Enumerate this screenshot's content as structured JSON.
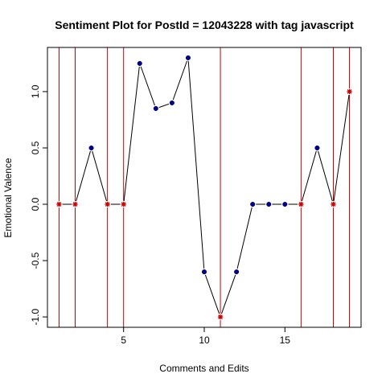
{
  "chart_data": {
    "type": "line",
    "title": "Sentiment Plot for PostId =  12043228  with tag  javascript",
    "xlabel": "Comments and Edits",
    "ylabel": "Emotional Valence",
    "xlim": [
      0.28,
      19.72
    ],
    "ylim": [
      -1.092,
      1.392
    ],
    "x_ticks": [
      5,
      10,
      15
    ],
    "x_tick_labels": [
      "5",
      "10",
      "15"
    ],
    "y_ticks": [
      -1.0,
      -0.5,
      0.0,
      0.5,
      1.0
    ],
    "y_tick_labels": [
      "-1.0",
      "-0.5",
      "0.0",
      "0.5",
      "1.0"
    ],
    "x": [
      1,
      2,
      3,
      4,
      5,
      6,
      7,
      8,
      9,
      10,
      11,
      12,
      13,
      14,
      15,
      16,
      17,
      18,
      19
    ],
    "values": [
      0,
      0,
      0.5,
      0,
      0,
      1.25,
      0.85,
      0.9,
      1.3,
      -0.6,
      -1.0,
      -0.6,
      0,
      0,
      0,
      0,
      0.5,
      0,
      1.0
    ],
    "marker_types": [
      "edit",
      "edit",
      "comment",
      "edit",
      "edit",
      "comment",
      "comment",
      "comment",
      "comment",
      "comment",
      "edit",
      "comment",
      "comment",
      "comment",
      "comment",
      "edit",
      "comment",
      "edit",
      "edit"
    ],
    "vertical_lines_x": [
      1,
      2,
      4,
      5,
      11,
      16,
      18,
      19
    ],
    "colors": {
      "line": "#000000",
      "comment_marker": "#00008B",
      "edit_marker": "#CC0000",
      "vertical_line": "#CC0000",
      "axis": "#000000"
    }
  }
}
